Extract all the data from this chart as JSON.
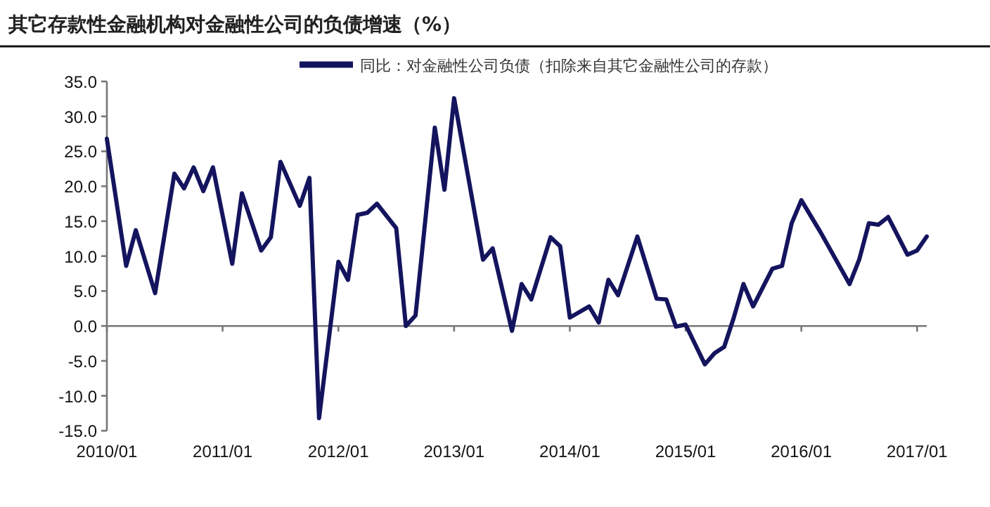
{
  "chart_data": {
    "type": "line",
    "title": "其它存款性金融机构对金融性公司的负债增速（%）",
    "x": [
      "2010-01",
      "2010-03",
      "2010-04",
      "2010-06",
      "2010-08",
      "2010-09",
      "2010-10",
      "2010-11",
      "2010-12",
      "2011-02",
      "2011-03",
      "2011-05",
      "2011-06",
      "2011-07",
      "2011-09",
      "2011-10",
      "2011-11",
      "2012-01",
      "2012-02",
      "2012-03",
      "2012-04",
      "2012-05",
      "2012-07",
      "2012-08",
      "2012-09",
      "2012-11",
      "2012-12",
      "2013-01",
      "2013-04",
      "2013-05",
      "2013-07",
      "2013-08",
      "2013-09",
      "2013-11",
      "2013-12",
      "2014-01",
      "2014-03",
      "2014-04",
      "2014-05",
      "2014-06",
      "2014-08",
      "2014-10",
      "2014-11",
      "2014-12",
      "2015-01",
      "2015-03",
      "2015-04",
      "2015-05",
      "2015-06",
      "2015-07",
      "2015-08",
      "2015-10",
      "2015-11",
      "2015-12",
      "2016-01",
      "2016-03",
      "2016-06",
      "2016-07",
      "2016-08",
      "2016-09",
      "2016-10",
      "2016-12",
      "2017-01",
      "2017-02"
    ],
    "series": [
      {
        "name": "同比：对金融性公司负债（扣除来自其它金融性公司的存款）",
        "color": "#14145e",
        "values": [
          26.8,
          8.6,
          13.7,
          4.7,
          21.8,
          19.7,
          22.7,
          19.3,
          22.7,
          8.9,
          19.0,
          10.8,
          12.7,
          23.5,
          17.2,
          21.2,
          -13.2,
          9.2,
          6.6,
          15.9,
          16.2,
          17.5,
          14.0,
          0.0,
          1.5,
          28.4,
          19.5,
          32.6,
          9.5,
          11.1,
          -0.7,
          6.0,
          3.8,
          12.7,
          11.4,
          1.2,
          2.8,
          0.5,
          6.6,
          4.4,
          12.8,
          3.9,
          3.8,
          -0.1,
          0.2,
          -5.5,
          -3.9,
          -3.0,
          1.2,
          6.0,
          2.8,
          8.2,
          8.6,
          14.7,
          18.0,
          13.4,
          6.0,
          9.5,
          14.7,
          14.5,
          15.6,
          10.2,
          10.8,
          12.8
        ]
      }
    ],
    "xlim": [
      "2010-01",
      "2017-02"
    ],
    "ylim": [
      -15,
      35
    ],
    "xticks": [
      {
        "value": "2010-01",
        "label": "2010/01"
      },
      {
        "value": "2011-01",
        "label": "2011/01"
      },
      {
        "value": "2012-01",
        "label": "2012/01"
      },
      {
        "value": "2013-01",
        "label": "2013/01"
      },
      {
        "value": "2014-01",
        "label": "2014/01"
      },
      {
        "value": "2015-01",
        "label": "2015/01"
      },
      {
        "value": "2016-01",
        "label": "2016/01"
      },
      {
        "value": "2017-01",
        "label": "2017/01"
      }
    ],
    "yticks": [
      {
        "value": -15,
        "label": "-15.0"
      },
      {
        "value": -10,
        "label": "-10.0"
      },
      {
        "value": -5,
        "label": "-5.0"
      },
      {
        "value": 0,
        "label": "0.0"
      },
      {
        "value": 5,
        "label": "5.0"
      },
      {
        "value": 10,
        "label": "10.0"
      },
      {
        "value": 15,
        "label": "15.0"
      },
      {
        "value": 20,
        "label": "20.0"
      },
      {
        "value": 25,
        "label": "25.0"
      },
      {
        "value": 30,
        "label": "30.0"
      },
      {
        "value": 35,
        "label": "35.0"
      }
    ],
    "legend": "top",
    "marker": "none",
    "line_style": "solid"
  }
}
